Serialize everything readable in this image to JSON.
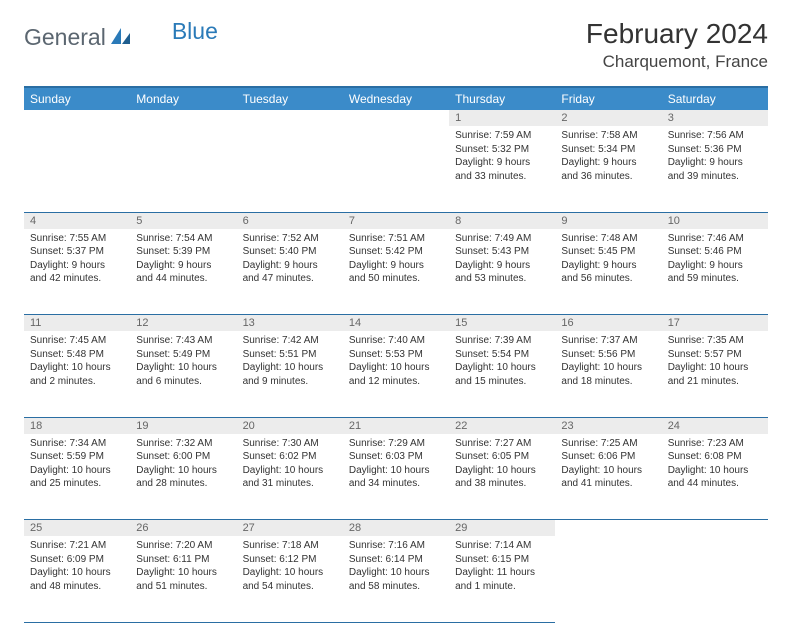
{
  "brand": {
    "part1": "General",
    "part2": "Blue"
  },
  "month_title": "February 2024",
  "location": "Charquemont, France",
  "colors": {
    "header_bg": "#3b8bc9",
    "header_border": "#2a6ea3",
    "daynum_bg": "#ececec",
    "text": "#333333",
    "logo_gray": "#5b6670",
    "logo_blue": "#2a7ab8"
  },
  "day_headers": [
    "Sunday",
    "Monday",
    "Tuesday",
    "Wednesday",
    "Thursday",
    "Friday",
    "Saturday"
  ],
  "weeks": [
    [
      null,
      null,
      null,
      null,
      {
        "n": "1",
        "sr": "7:59 AM",
        "ss": "5:32 PM",
        "dl": "9 hours and 33 minutes."
      },
      {
        "n": "2",
        "sr": "7:58 AM",
        "ss": "5:34 PM",
        "dl": "9 hours and 36 minutes."
      },
      {
        "n": "3",
        "sr": "7:56 AM",
        "ss": "5:36 PM",
        "dl": "9 hours and 39 minutes."
      }
    ],
    [
      {
        "n": "4",
        "sr": "7:55 AM",
        "ss": "5:37 PM",
        "dl": "9 hours and 42 minutes."
      },
      {
        "n": "5",
        "sr": "7:54 AM",
        "ss": "5:39 PM",
        "dl": "9 hours and 44 minutes."
      },
      {
        "n": "6",
        "sr": "7:52 AM",
        "ss": "5:40 PM",
        "dl": "9 hours and 47 minutes."
      },
      {
        "n": "7",
        "sr": "7:51 AM",
        "ss": "5:42 PM",
        "dl": "9 hours and 50 minutes."
      },
      {
        "n": "8",
        "sr": "7:49 AM",
        "ss": "5:43 PM",
        "dl": "9 hours and 53 minutes."
      },
      {
        "n": "9",
        "sr": "7:48 AM",
        "ss": "5:45 PM",
        "dl": "9 hours and 56 minutes."
      },
      {
        "n": "10",
        "sr": "7:46 AM",
        "ss": "5:46 PM",
        "dl": "9 hours and 59 minutes."
      }
    ],
    [
      {
        "n": "11",
        "sr": "7:45 AM",
        "ss": "5:48 PM",
        "dl": "10 hours and 2 minutes."
      },
      {
        "n": "12",
        "sr": "7:43 AM",
        "ss": "5:49 PM",
        "dl": "10 hours and 6 minutes."
      },
      {
        "n": "13",
        "sr": "7:42 AM",
        "ss": "5:51 PM",
        "dl": "10 hours and 9 minutes."
      },
      {
        "n": "14",
        "sr": "7:40 AM",
        "ss": "5:53 PM",
        "dl": "10 hours and 12 minutes."
      },
      {
        "n": "15",
        "sr": "7:39 AM",
        "ss": "5:54 PM",
        "dl": "10 hours and 15 minutes."
      },
      {
        "n": "16",
        "sr": "7:37 AM",
        "ss": "5:56 PM",
        "dl": "10 hours and 18 minutes."
      },
      {
        "n": "17",
        "sr": "7:35 AM",
        "ss": "5:57 PM",
        "dl": "10 hours and 21 minutes."
      }
    ],
    [
      {
        "n": "18",
        "sr": "7:34 AM",
        "ss": "5:59 PM",
        "dl": "10 hours and 25 minutes."
      },
      {
        "n": "19",
        "sr": "7:32 AM",
        "ss": "6:00 PM",
        "dl": "10 hours and 28 minutes."
      },
      {
        "n": "20",
        "sr": "7:30 AM",
        "ss": "6:02 PM",
        "dl": "10 hours and 31 minutes."
      },
      {
        "n": "21",
        "sr": "7:29 AM",
        "ss": "6:03 PM",
        "dl": "10 hours and 34 minutes."
      },
      {
        "n": "22",
        "sr": "7:27 AM",
        "ss": "6:05 PM",
        "dl": "10 hours and 38 minutes."
      },
      {
        "n": "23",
        "sr": "7:25 AM",
        "ss": "6:06 PM",
        "dl": "10 hours and 41 minutes."
      },
      {
        "n": "24",
        "sr": "7:23 AM",
        "ss": "6:08 PM",
        "dl": "10 hours and 44 minutes."
      }
    ],
    [
      {
        "n": "25",
        "sr": "7:21 AM",
        "ss": "6:09 PM",
        "dl": "10 hours and 48 minutes."
      },
      {
        "n": "26",
        "sr": "7:20 AM",
        "ss": "6:11 PM",
        "dl": "10 hours and 51 minutes."
      },
      {
        "n": "27",
        "sr": "7:18 AM",
        "ss": "6:12 PM",
        "dl": "10 hours and 54 minutes."
      },
      {
        "n": "28",
        "sr": "7:16 AM",
        "ss": "6:14 PM",
        "dl": "10 hours and 58 minutes."
      },
      {
        "n": "29",
        "sr": "7:14 AM",
        "ss": "6:15 PM",
        "dl": "11 hours and 1 minute."
      },
      null,
      null
    ]
  ],
  "labels": {
    "sunrise": "Sunrise:",
    "sunset": "Sunset:",
    "daylight": "Daylight:"
  }
}
